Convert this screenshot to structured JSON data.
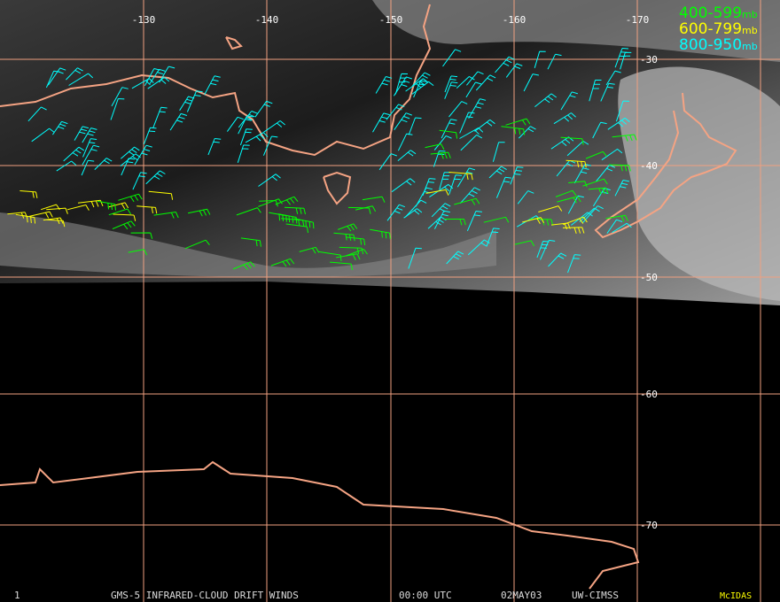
{
  "legend": [
    {
      "label": "400-599",
      "unit": "mb",
      "color": "#00ff00"
    },
    {
      "label": "600-799",
      "unit": "mb",
      "color": "#ffff00"
    },
    {
      "label": "800-950",
      "unit": "mb",
      "color": "#00ffff"
    }
  ],
  "longitude_labels": [
    "-130",
    "-140",
    "-150",
    "-160",
    "-170"
  ],
  "latitude_labels": [
    "-30",
    "-40",
    "-50",
    "-60",
    "-70"
  ],
  "footer": {
    "frame": "1",
    "product": "GMS-5 INFRARED-CLOUD DRIFT WINDS",
    "time": "00:00 UTC",
    "date": "02MAY03",
    "source": "UW-CIMSS",
    "software": "McIDAS"
  }
}
